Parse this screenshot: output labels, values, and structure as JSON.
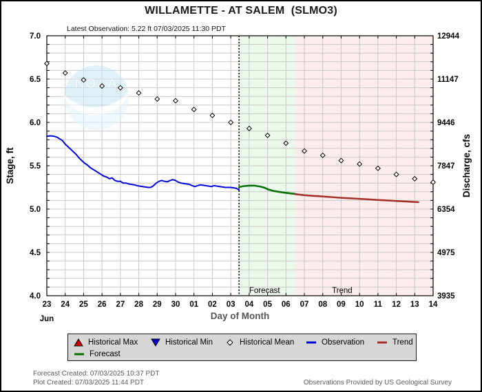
{
  "header": {
    "title": "WILLAMETTE - AT SALEM  (SLMO3)",
    "latest_observation": "Latest Observation: 5.22 ft 07/03/2025 11:30 PDT"
  },
  "chart_data": {
    "type": "line",
    "title": "WILLAMETTE - AT SALEM  (SLMO3)",
    "x_axis": {
      "label": "Day of Month",
      "month_label": "Jun",
      "day_labels": [
        "23",
        "24",
        "25",
        "26",
        "27",
        "28",
        "29",
        "30",
        "01",
        "02",
        "03",
        "04",
        "05",
        "06",
        "07",
        "08",
        "09",
        "10",
        "11",
        "12",
        "13",
        "14"
      ],
      "range_days": [
        0,
        21
      ]
    },
    "y_left": {
      "label": "Stage, ft",
      "range": [
        4.0,
        7.0
      ],
      "tick_values": [
        7.0,
        6.5,
        6.0,
        5.5,
        5.0,
        4.5,
        4.0
      ],
      "tick_labels": [
        "7.0",
        "6.5",
        "6.0",
        "5.5",
        "5.0",
        "4.5",
        "4.0"
      ],
      "minor_step": 0.1
    },
    "y_right": {
      "label": "Discharge, cfs",
      "tick_labels": [
        "12944",
        "11147",
        "9446",
        "7847",
        "6354",
        "4975",
        "3935"
      ]
    },
    "grid_on": true,
    "now_line_day": 10.45,
    "regions": [
      {
        "name": "Forecast",
        "start_day": 10.45,
        "end_day": 13.5,
        "fill": "#edf8ec",
        "label_day": 11.0
      },
      {
        "name": "Trend",
        "start_day": 13.5,
        "end_day": 21,
        "fill": "#fdecec",
        "label_day": 15.5
      }
    ],
    "series": [
      {
        "name": "Observation",
        "kind": "line",
        "color": "#0000dd",
        "width": 2,
        "points": [
          [
            0,
            5.84
          ],
          [
            0.2,
            5.845
          ],
          [
            0.4,
            5.84
          ],
          [
            0.55,
            5.83
          ],
          [
            0.7,
            5.81
          ],
          [
            0.85,
            5.79
          ],
          [
            1.0,
            5.75
          ],
          [
            1.15,
            5.72
          ],
          [
            1.3,
            5.69
          ],
          [
            1.45,
            5.66
          ],
          [
            1.6,
            5.63
          ],
          [
            1.75,
            5.59
          ],
          [
            1.9,
            5.56
          ],
          [
            2.05,
            5.53
          ],
          [
            2.2,
            5.51
          ],
          [
            2.35,
            5.48
          ],
          [
            2.5,
            5.46
          ],
          [
            2.65,
            5.44
          ],
          [
            2.8,
            5.42
          ],
          [
            2.95,
            5.4
          ],
          [
            3.1,
            5.38
          ],
          [
            3.25,
            5.37
          ],
          [
            3.4,
            5.35
          ],
          [
            3.55,
            5.36
          ],
          [
            3.7,
            5.33
          ],
          [
            3.85,
            5.32
          ],
          [
            4.0,
            5.32
          ],
          [
            4.15,
            5.3
          ],
          [
            4.3,
            5.3
          ],
          [
            4.45,
            5.29
          ],
          [
            4.6,
            5.285
          ],
          [
            4.75,
            5.28
          ],
          [
            4.9,
            5.27
          ],
          [
            5.05,
            5.265
          ],
          [
            5.2,
            5.26
          ],
          [
            5.35,
            5.255
          ],
          [
            5.5,
            5.25
          ],
          [
            5.65,
            5.25
          ],
          [
            5.8,
            5.27
          ],
          [
            5.95,
            5.3
          ],
          [
            6.1,
            5.32
          ],
          [
            6.25,
            5.33
          ],
          [
            6.4,
            5.32
          ],
          [
            6.55,
            5.315
          ],
          [
            6.7,
            5.33
          ],
          [
            6.85,
            5.34
          ],
          [
            7.0,
            5.33
          ],
          [
            7.15,
            5.31
          ],
          [
            7.3,
            5.3
          ],
          [
            7.45,
            5.295
          ],
          [
            7.6,
            5.29
          ],
          [
            7.75,
            5.285
          ],
          [
            7.9,
            5.27
          ],
          [
            8.05,
            5.26
          ],
          [
            8.2,
            5.27
          ],
          [
            8.35,
            5.28
          ],
          [
            8.5,
            5.275
          ],
          [
            8.65,
            5.27
          ],
          [
            8.8,
            5.265
          ],
          [
            8.95,
            5.26
          ],
          [
            9.1,
            5.27
          ],
          [
            9.25,
            5.265
          ],
          [
            9.4,
            5.26
          ],
          [
            9.55,
            5.255
          ],
          [
            9.7,
            5.25
          ],
          [
            9.85,
            5.25
          ],
          [
            10.0,
            5.25
          ],
          [
            10.15,
            5.245
          ],
          [
            10.3,
            5.24
          ],
          [
            10.45,
            5.22
          ]
        ]
      },
      {
        "name": "Forecast",
        "kind": "line",
        "color": "#056e05",
        "width": 2.6,
        "points": [
          [
            10.45,
            5.255
          ],
          [
            10.7,
            5.265
          ],
          [
            11.0,
            5.27
          ],
          [
            11.3,
            5.27
          ],
          [
            11.6,
            5.26
          ],
          [
            11.85,
            5.245
          ],
          [
            12.05,
            5.225
          ],
          [
            12.3,
            5.21
          ],
          [
            12.6,
            5.2
          ],
          [
            12.9,
            5.19
          ],
          [
            13.2,
            5.182
          ],
          [
            13.5,
            5.175
          ]
        ]
      },
      {
        "name": "Trend",
        "kind": "line",
        "color": "#a5302a",
        "width": 2.6,
        "points": [
          [
            13.5,
            5.172
          ],
          [
            14.0,
            5.16
          ],
          [
            14.5,
            5.152
          ],
          [
            15.0,
            5.145
          ],
          [
            15.5,
            5.138
          ],
          [
            16.0,
            5.13
          ],
          [
            16.5,
            5.124
          ],
          [
            17.0,
            5.118
          ],
          [
            17.5,
            5.112
          ],
          [
            18.0,
            5.105
          ],
          [
            18.5,
            5.1
          ],
          [
            19.0,
            5.094
          ],
          [
            19.5,
            5.088
          ],
          [
            20.0,
            5.082
          ],
          [
            20.2,
            5.08
          ]
        ]
      },
      {
        "name": "Historical Mean",
        "kind": "marker",
        "marker": "diamond",
        "color": "#000000",
        "points": [
          [
            0,
            6.68
          ],
          [
            1,
            6.57
          ],
          [
            2,
            6.49
          ],
          [
            3,
            6.42
          ],
          [
            4,
            6.4
          ],
          [
            5,
            6.34
          ],
          [
            6,
            6.27
          ],
          [
            7,
            6.25
          ],
          [
            8,
            6.15
          ],
          [
            9,
            6.08
          ],
          [
            10,
            6.0
          ],
          [
            11,
            5.93
          ],
          [
            12,
            5.85
          ],
          [
            13,
            5.76
          ],
          [
            14,
            5.67
          ],
          [
            15,
            5.62
          ],
          [
            16,
            5.56
          ],
          [
            17,
            5.52
          ],
          [
            18,
            5.47
          ],
          [
            19,
            5.4
          ],
          [
            20,
            5.35
          ],
          [
            21,
            5.31
          ]
        ]
      }
    ],
    "watermark": "NOAA"
  },
  "legend": {
    "items": [
      {
        "label": "Historical Max",
        "marker": "triangle-up",
        "color": "#cc0000"
      },
      {
        "label": "Historical Min",
        "marker": "triangle-down",
        "color": "#0000cc"
      },
      {
        "label": "Historical Mean",
        "marker": "diamond",
        "color": "#ffffff"
      },
      {
        "label": "Observation",
        "marker": "line",
        "color": "#0000dd"
      },
      {
        "label": "Trend",
        "marker": "line",
        "color": "#a5302a"
      },
      {
        "label": "Forecast",
        "marker": "line",
        "color": "#056e05"
      }
    ]
  },
  "footer": {
    "forecast_created": "Forecast Created: 07/03/2025 10:37 PDT",
    "plot_created": "Plot Created: 07/03/2025 11:44 PDT",
    "source": "Observations Provided by US Geological Survey"
  }
}
